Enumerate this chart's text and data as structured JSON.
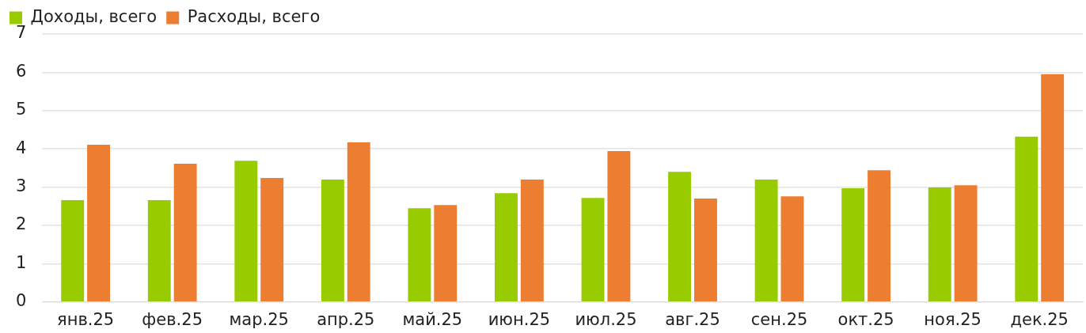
{
  "chart_data": {
    "type": "bar",
    "categories": [
      "янв.25",
      "фев.25",
      "мар.25",
      "апр.25",
      "май.25",
      "июн.25",
      "июл.25",
      "авг.25",
      "сен.25",
      "окт.25",
      "ноя.25",
      "дек.25"
    ],
    "series": [
      {
        "name": "Доходы, всего",
        "color": "#99cc00",
        "values": [
          2.66,
          2.66,
          3.69,
          3.2,
          2.45,
          2.84,
          2.72,
          3.4,
          3.2,
          2.97,
          2.99,
          4.32
        ]
      },
      {
        "name": "Расходы, всего",
        "color": "#ed7d31",
        "values": [
          4.11,
          3.61,
          3.24,
          4.17,
          2.53,
          3.2,
          3.94,
          2.7,
          2.76,
          3.44,
          3.05,
          5.95
        ]
      }
    ],
    "ylim": [
      0,
      7
    ],
    "yticks": [
      0,
      1,
      2,
      3,
      4,
      5,
      6,
      7
    ],
    "grid": "y",
    "legend": "top left"
  }
}
